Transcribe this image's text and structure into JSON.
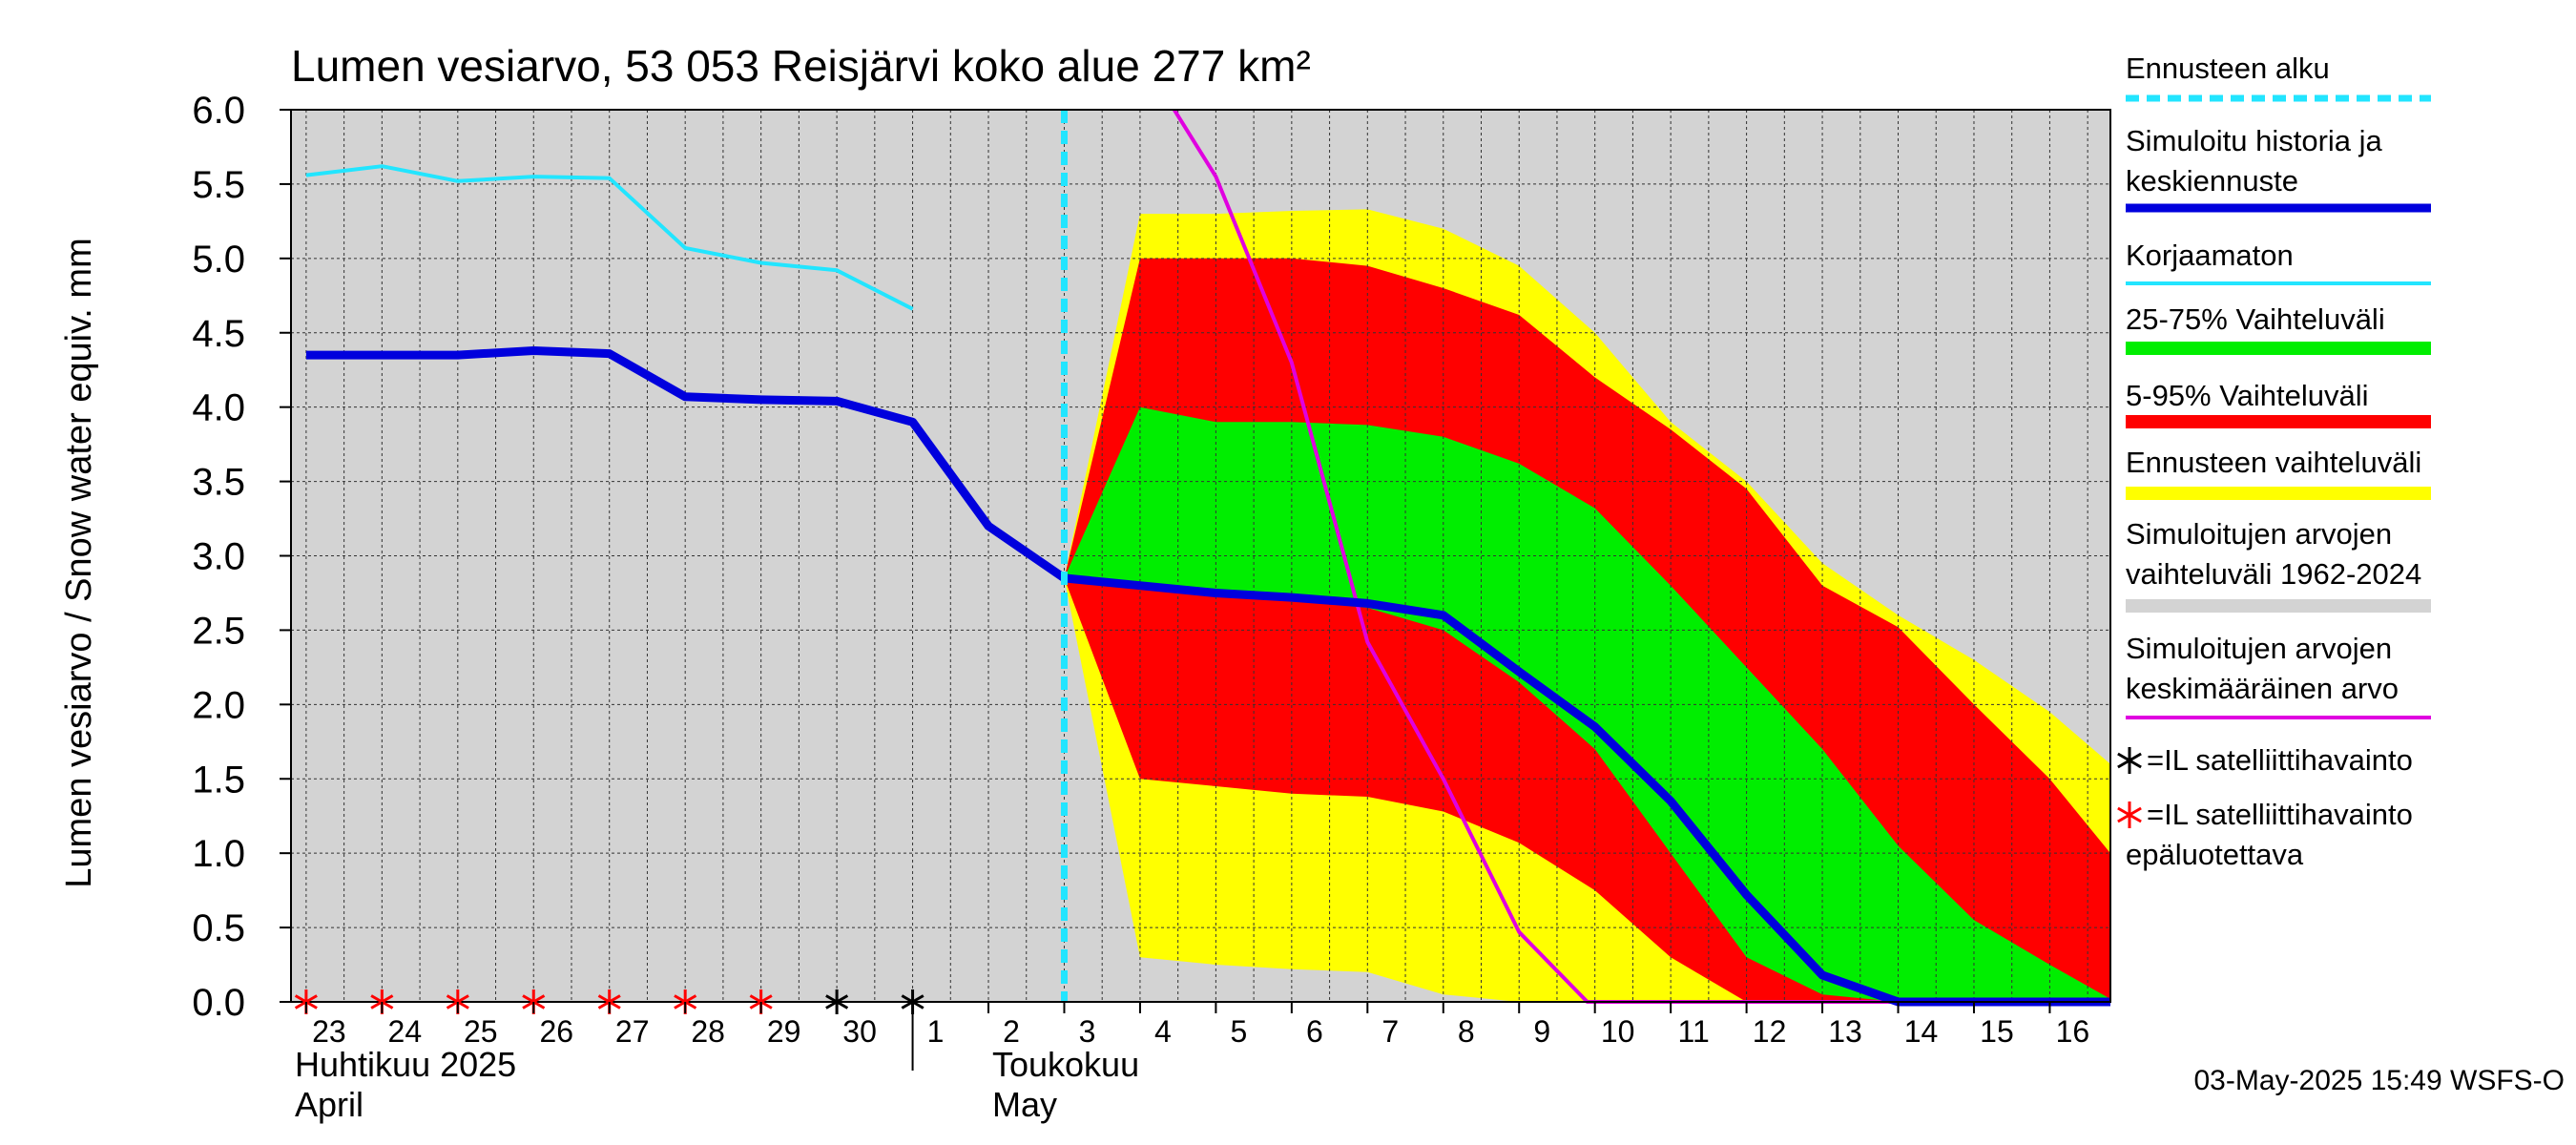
{
  "chart_data": {
    "type": "area",
    "title": "Lumen vesiarvo, 53 053 Reisjärvi koko alue 277 km²",
    "ylabel": "Lumen vesiarvo / Snow water equiv.    mm",
    "ylim": [
      0,
      6
    ],
    "yticks": [
      "0.0",
      "0.5",
      "1.0",
      "1.5",
      "2.0",
      "2.5",
      "3.0",
      "3.5",
      "4.0",
      "4.5",
      "5.0",
      "5.5",
      "6.0"
    ],
    "xlim": [
      -0.2,
      23.8
    ],
    "x_days": [
      {
        "x": 0,
        "label": "23"
      },
      {
        "x": 1,
        "label": "24"
      },
      {
        "x": 2,
        "label": "25"
      },
      {
        "x": 3,
        "label": "26"
      },
      {
        "x": 4,
        "label": "27"
      },
      {
        "x": 5,
        "label": "28"
      },
      {
        "x": 6,
        "label": "29"
      },
      {
        "x": 7,
        "label": "30"
      },
      {
        "x": 8,
        "label": "1"
      },
      {
        "x": 9,
        "label": "2"
      },
      {
        "x": 10,
        "label": "3"
      },
      {
        "x": 11,
        "label": "4"
      },
      {
        "x": 12,
        "label": "5"
      },
      {
        "x": 13,
        "label": "6"
      },
      {
        "x": 14,
        "label": "7"
      },
      {
        "x": 15,
        "label": "8"
      },
      {
        "x": 16,
        "label": "9"
      },
      {
        "x": 17,
        "label": "10"
      },
      {
        "x": 18,
        "label": "11"
      },
      {
        "x": 19,
        "label": "12"
      },
      {
        "x": 20,
        "label": "13"
      },
      {
        "x": 21,
        "label": "14"
      },
      {
        "x": 22,
        "label": "15"
      },
      {
        "x": 23,
        "label": "16"
      }
    ],
    "months": [
      {
        "x": 0,
        "line1": "Huhtikuu  2025",
        "line2": "April"
      },
      {
        "x": 9,
        "line1": "Toukokuu",
        "line2": "May"
      }
    ],
    "forecast_start_x": 10,
    "bands": {
      "ennusteen_vaihteluvali": {
        "x": [
          10,
          11,
          12,
          13,
          14,
          15,
          16,
          17,
          18,
          19,
          20,
          21,
          22,
          23,
          23.8
        ],
        "upper": [
          2.85,
          5.3,
          5.3,
          5.32,
          5.33,
          5.2,
          4.95,
          4.5,
          3.9,
          3.5,
          2.95,
          2.6,
          2.3,
          1.95,
          1.6
        ],
        "lower": [
          2.85,
          0.3,
          0.25,
          0.22,
          0.2,
          0.05,
          0,
          0,
          0,
          0,
          0,
          0,
          0,
          0,
          0
        ]
      },
      "vaihteluvali_5_95": {
        "x": [
          10,
          11,
          12,
          13,
          14,
          15,
          16,
          17,
          18,
          19,
          20,
          21,
          22,
          23,
          23.8
        ],
        "upper": [
          2.85,
          5.0,
          5.0,
          5.0,
          4.95,
          4.8,
          4.62,
          4.2,
          3.85,
          3.45,
          2.8,
          2.52,
          2.0,
          1.5,
          1.0
        ],
        "lower": [
          2.85,
          1.5,
          1.45,
          1.4,
          1.38,
          1.28,
          1.07,
          0.75,
          0.3,
          0,
          0,
          0,
          0,
          0,
          0
        ]
      },
      "vaihteluvali_25_75": {
        "x": [
          10,
          11,
          12,
          13,
          14,
          15,
          16,
          17,
          18,
          19,
          20,
          21,
          22,
          23,
          23.8
        ],
        "upper": [
          2.85,
          4.0,
          3.9,
          3.9,
          3.88,
          3.8,
          3.62,
          3.32,
          2.8,
          2.25,
          1.7,
          1.05,
          0.55,
          0.25,
          0.02
        ],
        "lower": [
          2.85,
          2.8,
          2.75,
          2.7,
          2.65,
          2.5,
          2.15,
          1.7,
          1.0,
          0.3,
          0.05,
          0,
          0,
          0,
          0
        ]
      }
    },
    "series": [
      {
        "name": "Simuloitu historia ja keskiennuste",
        "color": "#0000dd",
        "x": [
          0,
          1,
          2,
          3,
          4,
          5,
          6,
          7,
          8,
          9,
          10,
          11,
          12,
          13,
          14,
          15,
          16,
          17,
          18,
          19,
          20,
          21,
          22,
          23,
          23.8
        ],
        "values": [
          4.35,
          4.35,
          4.35,
          4.38,
          4.36,
          4.07,
          4.05,
          4.04,
          3.9,
          3.2,
          2.85,
          2.8,
          2.75,
          2.72,
          2.68,
          2.6,
          2.22,
          1.85,
          1.35,
          0.72,
          0.18,
          0.0,
          0.0,
          0.0,
          0.0
        ]
      },
      {
        "name": "Korjaamaton",
        "color": "#22e5ff",
        "x": [
          0,
          1,
          2,
          3,
          4,
          5,
          6,
          7,
          8
        ],
        "values": [
          5.56,
          5.62,
          5.52,
          5.55,
          5.54,
          5.07,
          4.97,
          4.92,
          4.66
        ]
      },
      {
        "name": "Simuloitujen arvojen keskimääräinen arvo",
        "color": "#e000e0",
        "x": [
          11.45,
          12,
          13,
          14,
          15,
          16,
          16.9,
          17,
          18,
          19,
          20,
          21,
          22,
          23,
          23.8
        ],
        "values": [
          6.0,
          5.55,
          4.3,
          2.42,
          1.5,
          0.47,
          0.0,
          0.0,
          0.0,
          0.0,
          0.0,
          0.0,
          0.0,
          0.0,
          0.0
        ]
      }
    ],
    "markers": [
      {
        "x": 0,
        "type": "unreliable"
      },
      {
        "x": 1,
        "type": "unreliable"
      },
      {
        "x": 2,
        "type": "unreliable"
      },
      {
        "x": 3,
        "type": "unreliable"
      },
      {
        "x": 4,
        "type": "unreliable"
      },
      {
        "x": 5,
        "type": "unreliable"
      },
      {
        "x": 6,
        "type": "unreliable"
      },
      {
        "x": 7,
        "type": "observation"
      },
      {
        "x": 8,
        "type": "observation"
      }
    ],
    "colors": {
      "background": "#d3d3d3",
      "grid": "#333333",
      "yellow": "#ffff00",
      "red": "#ff0000",
      "green": "#00ee00",
      "forecast_line": "#22e5ff",
      "marker_black": "#000000",
      "marker_red": "#ff0000"
    },
    "legend": {
      "position": "right",
      "items": [
        {
          "lines": [
            "Ennusteen alku"
          ],
          "color": "#22e5ff",
          "style": "dashed"
        },
        {
          "lines": [
            "Simuloitu historia ja",
            "keskiennuste"
          ],
          "color": "#0000dd",
          "style": "thick"
        },
        {
          "lines": [
            "Korjaamaton"
          ],
          "color": "#22e5ff",
          "style": "thin"
        },
        {
          "lines": [
            "25-75% Vaihteluväli"
          ],
          "color": "#00ee00",
          "style": "band"
        },
        {
          "lines": [
            "5-95% Vaihteluväli"
          ],
          "color": "#ff0000",
          "style": "band"
        },
        {
          "lines": [
            "Ennusteen vaihteluväli"
          ],
          "color": "#ffff00",
          "style": "band"
        },
        {
          "lines": [
            "Simuloitujen arvojen",
            "vaihteluväli 1962-2024"
          ],
          "color": "#d3d3d3",
          "style": "band"
        },
        {
          "lines": [
            "Simuloitujen arvojen",
            "keskimääräinen arvo"
          ],
          "color": "#e000e0",
          "style": "thin"
        }
      ],
      "marker_items": [
        {
          "lines": [
            "=IL satelliittihavainto"
          ],
          "color": "#000000"
        },
        {
          "lines": [
            "=IL satelliittihavainto",
            "epäluotettava"
          ],
          "color": "#ff0000"
        }
      ]
    },
    "footer": "03-May-2025 15:49 WSFS-O"
  }
}
